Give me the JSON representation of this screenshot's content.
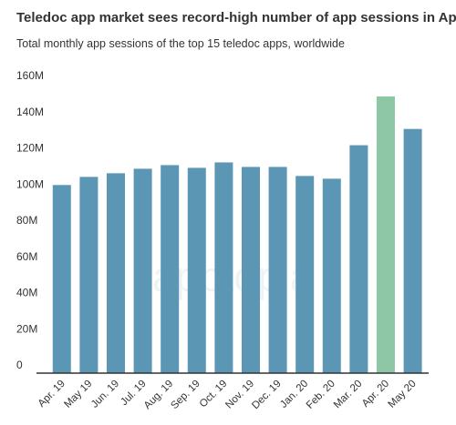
{
  "chart_data": {
    "type": "bar",
    "title": "Teledoc app market sees record-high number of app sessions in April",
    "subtitle": "Total monthly app sessions of the top 15 teledoc apps, worldwide",
    "watermark": "apptopia",
    "categories": [
      "Apr. 19",
      "May 19",
      "Jun. 19",
      "Jul. 19",
      "Aug. 19",
      "Sep. 19",
      "Oct. 19",
      "Nov. 19",
      "Dec. 19",
      "Jan. 20",
      "Feb. 20",
      "Mar. 20",
      "Apr. 20",
      "May 20"
    ],
    "values": [
      104,
      108.5,
      110.5,
      113,
      115,
      113.5,
      116.5,
      114,
      114,
      109,
      107.5,
      126,
      153,
      135
    ],
    "colors": [
      "#5b97b5",
      "#5b97b5",
      "#5b97b5",
      "#5b97b5",
      "#5b97b5",
      "#5b97b5",
      "#5b97b5",
      "#5b97b5",
      "#5b97b5",
      "#5b97b5",
      "#5b97b5",
      "#5b97b5",
      "#8dc7a6",
      "#5b97b5"
    ],
    "ylim": [
      0,
      160
    ],
    "yticks": [
      0,
      {
        "value": 20,
        "label": "20M"
      },
      {
        "value": 40,
        "label": "40M"
      },
      {
        "value": 60,
        "label": "60M"
      },
      {
        "value": 80,
        "label": "80M"
      },
      {
        "value": 100,
        "label": "100M"
      },
      {
        "value": 120,
        "label": "120M"
      },
      {
        "value": 140,
        "label": "140M"
      },
      {
        "value": 160,
        "label": "160M"
      }
    ],
    "grid": false
  }
}
